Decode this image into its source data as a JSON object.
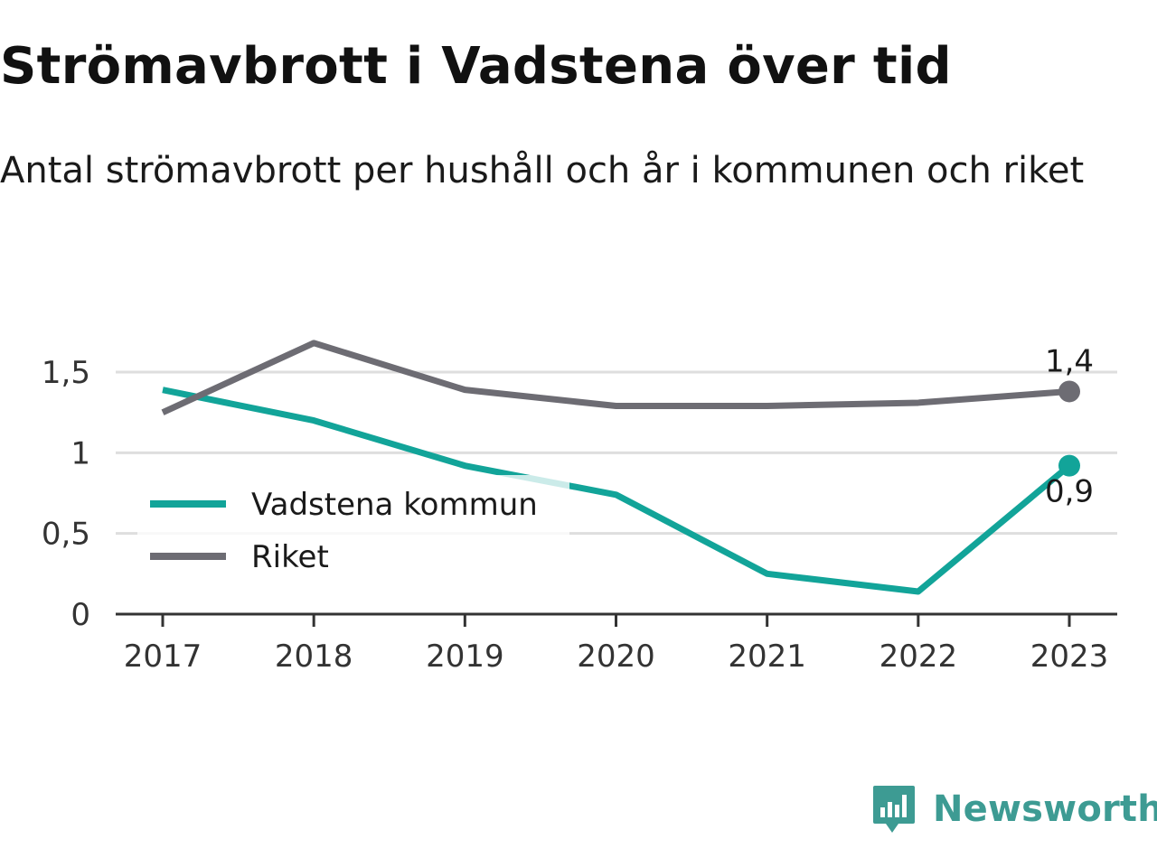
{
  "title": "Strömavbrott i Vadstena över tid",
  "subtitle": "Antal strömavbrott per hushåll och år i kommunen och riket",
  "brand": {
    "name": "Newsworthy",
    "icon": "newsworthy-logo-icon",
    "color": "#3d9b93"
  },
  "chart_data": {
    "type": "line",
    "x": [
      "2017",
      "2018",
      "2019",
      "2020",
      "2021",
      "2022",
      "2023"
    ],
    "ylim": [
      0,
      1.65
    ],
    "yticks": [
      0,
      0.5,
      1,
      1.5
    ],
    "ytick_labels": [
      "0",
      "0,5",
      "1",
      "1,5"
    ],
    "grid": true,
    "legend_position": "left",
    "series": [
      {
        "name": "Vadstena kommun",
        "color": "#12a499",
        "values": [
          1.39,
          1.2,
          0.92,
          0.74,
          0.25,
          0.14,
          0.92
        ],
        "end_label": "0,9"
      },
      {
        "name": "Riket",
        "color": "#6d6c73",
        "values": [
          1.25,
          1.68,
          1.39,
          1.29,
          1.29,
          1.31,
          1.38
        ],
        "end_label": "1,4"
      }
    ]
  }
}
